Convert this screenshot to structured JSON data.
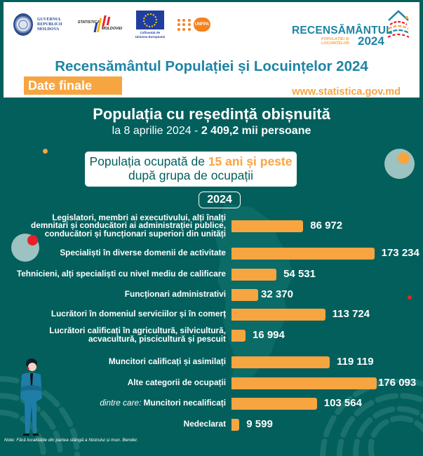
{
  "header": {
    "logos": {
      "government": {
        "line1": "GUVERNUL",
        "line2": "REPUBLICII",
        "line3": "MOLDOVA"
      },
      "statistics": {
        "top": "STATISTICA",
        "bottom": "MOLDOVEI"
      },
      "eu": {
        "caption_line1": "Cofinanțat de",
        "caption_line2": "Uniunea Europeană"
      },
      "unfpa": {
        "label": "UNFPA"
      },
      "census": {
        "word": "RECENSĂMÂNTUL",
        "sub_line1": "POPULAȚIEI ȘI",
        "sub_line2": "LOCUINȚELOR",
        "year": "2024"
      }
    },
    "title": "Recensământul Populației și Locuințelor 2024",
    "badge": "Date finale",
    "website": "www.statistica.gov.md"
  },
  "summary": {
    "heading": "Populația cu reședință obișnuită",
    "date_prefix": "la 8 aprilie 2024 - ",
    "total": "2 409,2 mii persoane"
  },
  "info_box": {
    "line1_prefix": "Populația ocupată de ",
    "line1_highlight": "15 ani și peste",
    "line2": "după grupa de ocupații"
  },
  "year_label": "2024",
  "colors": {
    "background": "#035f5c",
    "bar": "#f7a541",
    "title_blue": "#1e84a5",
    "accent_orange": "#f7a541",
    "accent_red": "#e8202a"
  },
  "chart_data": {
    "type": "bar",
    "orientation": "horizontal",
    "title": "Populația ocupată de 15 ani și peste după grupa de ocupații",
    "subtitle": "2024",
    "xlabel": "",
    "ylabel": "",
    "grid": false,
    "legend": null,
    "categories": [
      "Legislatori, membri ai executivului, alți înalți demnitari și conducători ai administrației publice, conducători și funcționari superiori din unități",
      "Specialiști în diverse domenii de activitate",
      "Tehnicieni, alți specialiști cu nivel mediu de calificare",
      "Funcționari administrativi",
      "Lucrători în domeniul serviciilor și în comerț",
      "Lucrători calificați în agricultură, silvicultură, acvacultură, piscicultură și pescuit",
      "Muncitori calificați și asimilați",
      "Alte categorii de ocupații",
      "dintre care: Muncitori necalificați",
      "Nedeclarat"
    ],
    "values": [
      86972,
      173234,
      54531,
      32370,
      113724,
      16994,
      119119,
      176093,
      103564,
      9599
    ],
    "value_labels": [
      "86 972",
      "173 234",
      "54 531",
      "32 370",
      "113 724",
      "16 994",
      "119 119",
      "176 093",
      "103 564",
      "9 599"
    ],
    "xlim": [
      0,
      176093
    ]
  },
  "rows": [
    {
      "label_lines": [
        "Legislatori, membri ai executivului, alți înalți",
        "demnitari și conducători ai administrației publice,",
        "conducători și funcționari superiori din unități"
      ],
      "value": "86 972"
    },
    {
      "label_lines": [
        "Specialiști în diverse domenii de activitate"
      ],
      "value": "173 234"
    },
    {
      "label_lines": [
        "Tehnicieni, alți specialiști cu nivel mediu de calificare"
      ],
      "value": "54 531"
    },
    {
      "label_lines": [
        "Funcționari administrativi"
      ],
      "value": "32 370"
    },
    {
      "label_lines": [
        "Lucrători în domeniul serviciilor și în comerț"
      ],
      "value": "113 724"
    },
    {
      "label_lines": [
        "Lucrători calificați în agricultură, silvicultură,",
        "acvacultură, piscicultură și pescuit"
      ],
      "value": "16 994"
    },
    {
      "label_lines": [
        "Muncitori calificați și asimilați"
      ],
      "value": "119 119"
    },
    {
      "label_lines": [
        "Alte categorii de ocupații"
      ],
      "value": "176 093"
    },
    {
      "label_prefix": "dintre care: ",
      "label_lines": [
        "Muncitori necalificați"
      ],
      "value": "103 564"
    },
    {
      "label_lines": [
        "Nedeclarat"
      ],
      "value": "9 599"
    }
  ],
  "note": "Note: Fără localitățile din partea stângă a Nistrului și mun. Bender."
}
